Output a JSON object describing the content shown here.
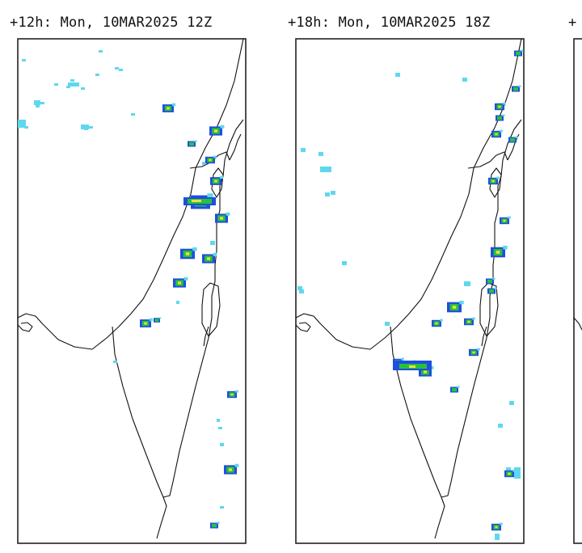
{
  "panels": [
    {
      "title": "+12h: Mon, 10MAR2025 12Z"
    },
    {
      "title": "+18h: Mon, 10MAR2025 18Z"
    },
    {
      "title": "+"
    }
  ],
  "colors": {
    "light": "#5fd8ef",
    "medium": "#1f4ee0",
    "heavy": "#27c23b",
    "extreme": "#e8e13a",
    "frame": "#222222",
    "coastline": "#111111"
  }
}
